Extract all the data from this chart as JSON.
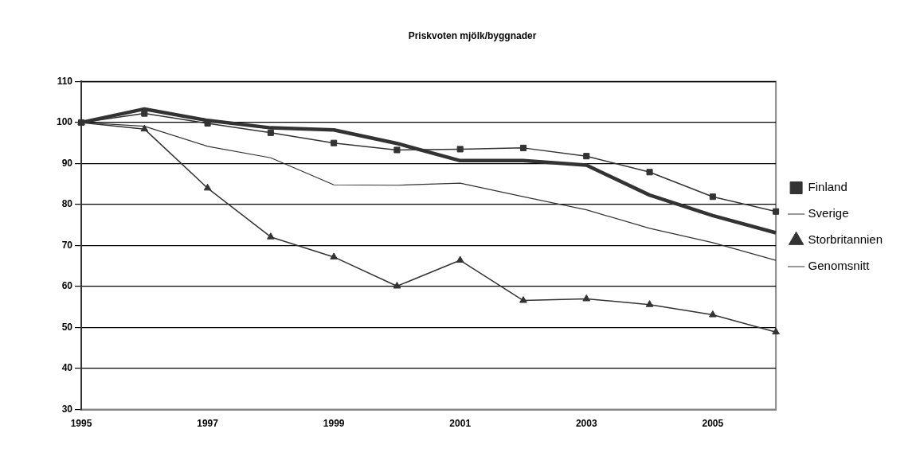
{
  "chart_data": {
    "type": "line",
    "title": "Priskvoten mjölk/byggnader",
    "categories": [
      "1995",
      null,
      "1997",
      null,
      "1999",
      null,
      "2001",
      null,
      "2003",
      null,
      "2005",
      null
    ],
    "ylim": [
      30,
      110
    ],
    "yticks": [
      30,
      40,
      50,
      60,
      70,
      80,
      90,
      100,
      110
    ],
    "grid": "y",
    "legend": "right",
    "series": [
      {
        "name": "Finland",
        "color": "#333333",
        "marker": "square",
        "line_style": "solid",
        "values": [
          100,
          102.2,
          99.8,
          97.5,
          95,
          93.3,
          93.5,
          93.8,
          91.8,
          87.9,
          81.9,
          78.3
        ]
      },
      {
        "name": "Sverige",
        "color": "#333333",
        "marker": "none",
        "line_style": "solid",
        "values": [
          100,
          103.3,
          100.5,
          98.7,
          98.2,
          94.9,
          90.7,
          90.7,
          89.6,
          82.3,
          77.3,
          73.1
        ]
      },
      {
        "name": "Storbritannien",
        "color": "#333333",
        "marker": "triangle",
        "line_style": "solid",
        "values": [
          100,
          98.4,
          84,
          72.1,
          67.2,
          60.1,
          66.4,
          56.6,
          57,
          55.6,
          53.1,
          48.9
        ]
      },
      {
        "name": "Genomsnitt",
        "color": "#333333",
        "marker": "none",
        "line_style": "solid",
        "values": [
          100,
          99.1,
          94.2,
          91.4,
          84.8,
          84.7,
          85.2,
          81.9,
          78.7,
          74.2,
          70.7,
          66.4
        ]
      }
    ]
  }
}
